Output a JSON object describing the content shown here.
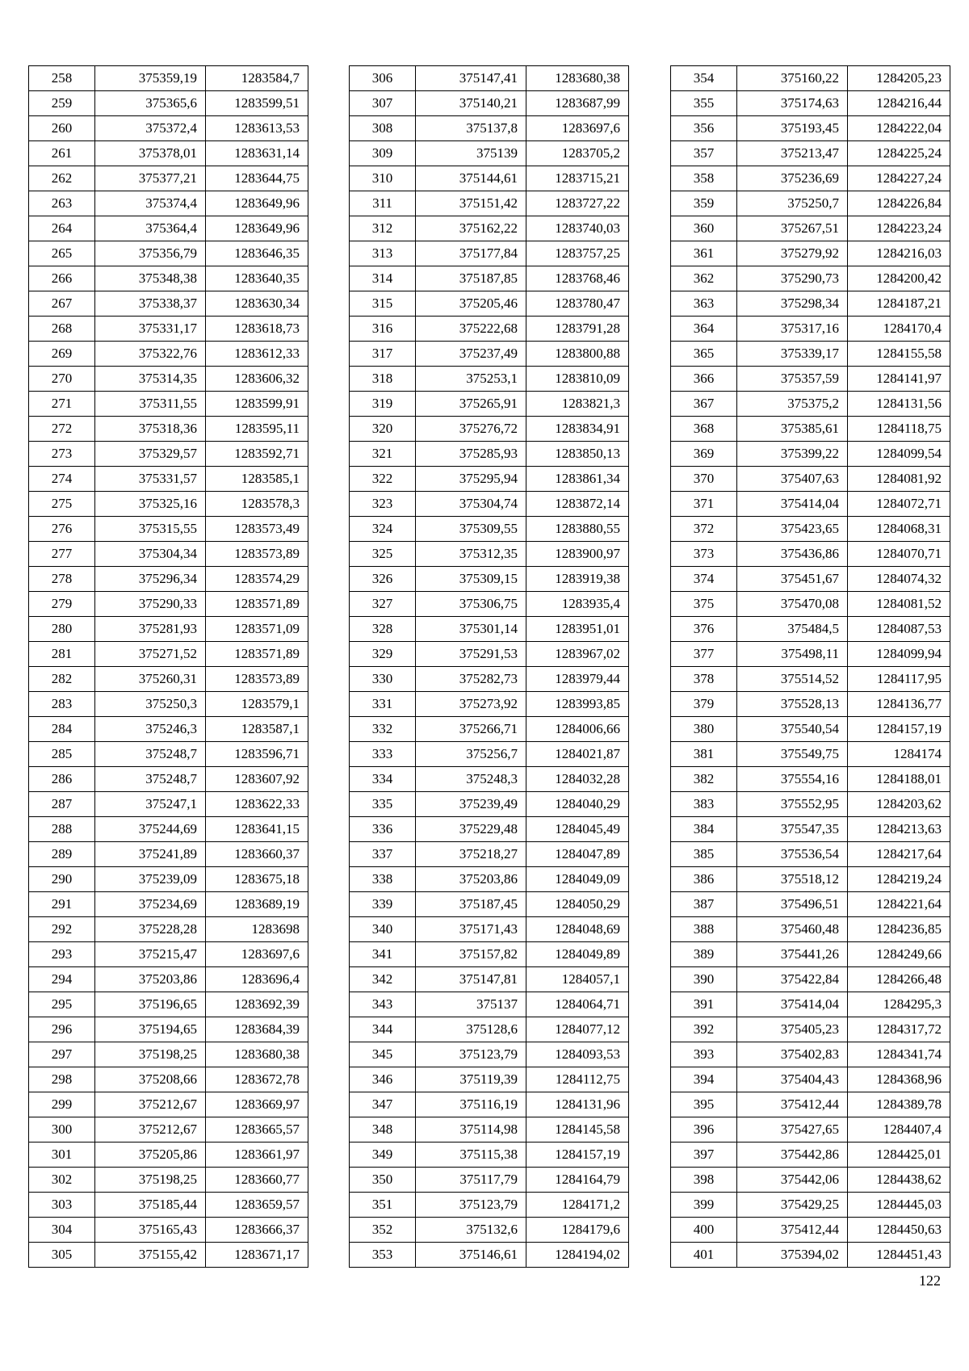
{
  "page_number": "122",
  "tables": [
    {
      "rows": [
        [
          "258",
          "375359,19",
          "1283584,7"
        ],
        [
          "259",
          "375365,6",
          "1283599,51"
        ],
        [
          "260",
          "375372,4",
          "1283613,53"
        ],
        [
          "261",
          "375378,01",
          "1283631,14"
        ],
        [
          "262",
          "375377,21",
          "1283644,75"
        ],
        [
          "263",
          "375374,4",
          "1283649,96"
        ],
        [
          "264",
          "375364,4",
          "1283649,96"
        ],
        [
          "265",
          "375356,79",
          "1283646,35"
        ],
        [
          "266",
          "375348,38",
          "1283640,35"
        ],
        [
          "267",
          "375338,37",
          "1283630,34"
        ],
        [
          "268",
          "375331,17",
          "1283618,73"
        ],
        [
          "269",
          "375322,76",
          "1283612,33"
        ],
        [
          "270",
          "375314,35",
          "1283606,32"
        ],
        [
          "271",
          "375311,55",
          "1283599,91"
        ],
        [
          "272",
          "375318,36",
          "1283595,11"
        ],
        [
          "273",
          "375329,57",
          "1283592,71"
        ],
        [
          "274",
          "375331,57",
          "1283585,1"
        ],
        [
          "275",
          "375325,16",
          "1283578,3"
        ],
        [
          "276",
          "375315,55",
          "1283573,49"
        ],
        [
          "277",
          "375304,34",
          "1283573,89"
        ],
        [
          "278",
          "375296,34",
          "1283574,29"
        ],
        [
          "279",
          "375290,33",
          "1283571,89"
        ],
        [
          "280",
          "375281,93",
          "1283571,09"
        ],
        [
          "281",
          "375271,52",
          "1283571,89"
        ],
        [
          "282",
          "375260,31",
          "1283573,89"
        ],
        [
          "283",
          "375250,3",
          "1283579,1"
        ],
        [
          "284",
          "375246,3",
          "1283587,1"
        ],
        [
          "285",
          "375248,7",
          "1283596,71"
        ],
        [
          "286",
          "375248,7",
          "1283607,92"
        ],
        [
          "287",
          "375247,1",
          "1283622,33"
        ],
        [
          "288",
          "375244,69",
          "1283641,15"
        ],
        [
          "289",
          "375241,89",
          "1283660,37"
        ],
        [
          "290",
          "375239,09",
          "1283675,18"
        ],
        [
          "291",
          "375234,69",
          "1283689,19"
        ],
        [
          "292",
          "375228,28",
          "1283698"
        ],
        [
          "293",
          "375215,47",
          "1283697,6"
        ],
        [
          "294",
          "375203,86",
          "1283696,4"
        ],
        [
          "295",
          "375196,65",
          "1283692,39"
        ],
        [
          "296",
          "375194,65",
          "1283684,39"
        ],
        [
          "297",
          "375198,25",
          "1283680,38"
        ],
        [
          "298",
          "375208,66",
          "1283672,78"
        ],
        [
          "299",
          "375212,67",
          "1283669,97"
        ],
        [
          "300",
          "375212,67",
          "1283665,57"
        ],
        [
          "301",
          "375205,86",
          "1283661,97"
        ],
        [
          "302",
          "375198,25",
          "1283660,77"
        ],
        [
          "303",
          "375185,44",
          "1283659,57"
        ],
        [
          "304",
          "375165,43",
          "1283666,37"
        ],
        [
          "305",
          "375155,42",
          "1283671,17"
        ]
      ]
    },
    {
      "rows": [
        [
          "306",
          "375147,41",
          "1283680,38"
        ],
        [
          "307",
          "375140,21",
          "1283687,99"
        ],
        [
          "308",
          "375137,8",
          "1283697,6"
        ],
        [
          "309",
          "375139",
          "1283705,2"
        ],
        [
          "310",
          "375144,61",
          "1283715,21"
        ],
        [
          "311",
          "375151,42",
          "1283727,22"
        ],
        [
          "312",
          "375162,22",
          "1283740,03"
        ],
        [
          "313",
          "375177,84",
          "1283757,25"
        ],
        [
          "314",
          "375187,85",
          "1283768,46"
        ],
        [
          "315",
          "375205,46",
          "1283780,47"
        ],
        [
          "316",
          "375222,68",
          "1283791,28"
        ],
        [
          "317",
          "375237,49",
          "1283800,88"
        ],
        [
          "318",
          "375253,1",
          "1283810,09"
        ],
        [
          "319",
          "375265,91",
          "1283821,3"
        ],
        [
          "320",
          "375276,72",
          "1283834,91"
        ],
        [
          "321",
          "375285,93",
          "1283850,13"
        ],
        [
          "322",
          "375295,94",
          "1283861,34"
        ],
        [
          "323",
          "375304,74",
          "1283872,14"
        ],
        [
          "324",
          "375309,55",
          "1283880,55"
        ],
        [
          "325",
          "375312,35",
          "1283900,97"
        ],
        [
          "326",
          "375309,15",
          "1283919,38"
        ],
        [
          "327",
          "375306,75",
          "1283935,4"
        ],
        [
          "328",
          "375301,14",
          "1283951,01"
        ],
        [
          "329",
          "375291,53",
          "1283967,02"
        ],
        [
          "330",
          "375282,73",
          "1283979,44"
        ],
        [
          "331",
          "375273,92",
          "1283993,85"
        ],
        [
          "332",
          "375266,71",
          "1284006,66"
        ],
        [
          "333",
          "375256,7",
          "1284021,87"
        ],
        [
          "334",
          "375248,3",
          "1284032,28"
        ],
        [
          "335",
          "375239,49",
          "1284040,29"
        ],
        [
          "336",
          "375229,48",
          "1284045,49"
        ],
        [
          "337",
          "375218,27",
          "1284047,89"
        ],
        [
          "338",
          "375203,86",
          "1284049,09"
        ],
        [
          "339",
          "375187,45",
          "1284050,29"
        ],
        [
          "340",
          "375171,43",
          "1284048,69"
        ],
        [
          "341",
          "375157,82",
          "1284049,89"
        ],
        [
          "342",
          "375147,81",
          "1284057,1"
        ],
        [
          "343",
          "375137",
          "1284064,71"
        ],
        [
          "344",
          "375128,6",
          "1284077,12"
        ],
        [
          "345",
          "375123,79",
          "1284093,53"
        ],
        [
          "346",
          "375119,39",
          "1284112,75"
        ],
        [
          "347",
          "375116,19",
          "1284131,96"
        ],
        [
          "348",
          "375114,98",
          "1284145,58"
        ],
        [
          "349",
          "375115,38",
          "1284157,19"
        ],
        [
          "350",
          "375117,79",
          "1284164,79"
        ],
        [
          "351",
          "375123,79",
          "1284171,2"
        ],
        [
          "352",
          "375132,6",
          "1284179,6"
        ],
        [
          "353",
          "375146,61",
          "1284194,02"
        ]
      ]
    },
    {
      "rows": [
        [
          "354",
          "375160,22",
          "1284205,23"
        ],
        [
          "355",
          "375174,63",
          "1284216,44"
        ],
        [
          "356",
          "375193,45",
          "1284222,04"
        ],
        [
          "357",
          "375213,47",
          "1284225,24"
        ],
        [
          "358",
          "375236,69",
          "1284227,24"
        ],
        [
          "359",
          "375250,7",
          "1284226,84"
        ],
        [
          "360",
          "375267,51",
          "1284223,24"
        ],
        [
          "361",
          "375279,92",
          "1284216,03"
        ],
        [
          "362",
          "375290,73",
          "1284200,42"
        ],
        [
          "363",
          "375298,34",
          "1284187,21"
        ],
        [
          "364",
          "375317,16",
          "1284170,4"
        ],
        [
          "365",
          "375339,17",
          "1284155,58"
        ],
        [
          "366",
          "375357,59",
          "1284141,97"
        ],
        [
          "367",
          "375375,2",
          "1284131,56"
        ],
        [
          "368",
          "375385,61",
          "1284118,75"
        ],
        [
          "369",
          "375399,22",
          "1284099,54"
        ],
        [
          "370",
          "375407,63",
          "1284081,92"
        ],
        [
          "371",
          "375414,04",
          "1284072,71"
        ],
        [
          "372",
          "375423,65",
          "1284068,31"
        ],
        [
          "373",
          "375436,86",
          "1284070,71"
        ],
        [
          "374",
          "375451,67",
          "1284074,32"
        ],
        [
          "375",
          "375470,08",
          "1284081,52"
        ],
        [
          "376",
          "375484,5",
          "1284087,53"
        ],
        [
          "377",
          "375498,11",
          "1284099,94"
        ],
        [
          "378",
          "375514,52",
          "1284117,95"
        ],
        [
          "379",
          "375528,13",
          "1284136,77"
        ],
        [
          "380",
          "375540,54",
          "1284157,19"
        ],
        [
          "381",
          "375549,75",
          "1284174"
        ],
        [
          "382",
          "375554,16",
          "1284188,01"
        ],
        [
          "383",
          "375552,95",
          "1284203,62"
        ],
        [
          "384",
          "375547,35",
          "1284213,63"
        ],
        [
          "385",
          "375536,54",
          "1284217,64"
        ],
        [
          "386",
          "375518,12",
          "1284219,24"
        ],
        [
          "387",
          "375496,51",
          "1284221,64"
        ],
        [
          "388",
          "375460,48",
          "1284236,85"
        ],
        [
          "389",
          "375441,26",
          "1284249,66"
        ],
        [
          "390",
          "375422,84",
          "1284266,48"
        ],
        [
          "391",
          "375414,04",
          "1284295,3"
        ],
        [
          "392",
          "375405,23",
          "1284317,72"
        ],
        [
          "393",
          "375402,83",
          "1284341,74"
        ],
        [
          "394",
          "375404,43",
          "1284368,96"
        ],
        [
          "395",
          "375412,44",
          "1284389,78"
        ],
        [
          "396",
          "375427,65",
          "1284407,4"
        ],
        [
          "397",
          "375442,86",
          "1284425,01"
        ],
        [
          "398",
          "375442,06",
          "1284438,62"
        ],
        [
          "399",
          "375429,25",
          "1284445,03"
        ],
        [
          "400",
          "375412,44",
          "1284450,63"
        ],
        [
          "401",
          "375394,02",
          "1284451,43"
        ]
      ]
    }
  ]
}
